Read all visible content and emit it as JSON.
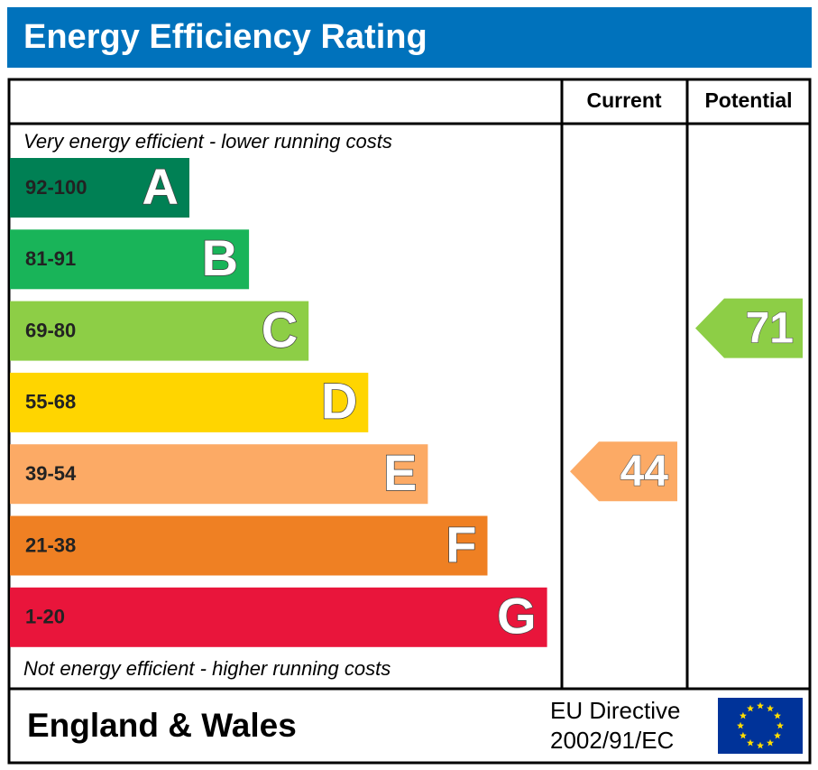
{
  "header": {
    "title": "Energy Efficiency Rating"
  },
  "columns": {
    "current": "Current",
    "potential": "Potential"
  },
  "top_note": "Very energy efficient - lower running costs",
  "bottom_note": "Not energy efficient - higher running costs",
  "bands": [
    {
      "range": "92-100",
      "letter": "A",
      "color": "#008054"
    },
    {
      "range": "81-91",
      "letter": "B",
      "color": "#19b459"
    },
    {
      "range": "69-80",
      "letter": "C",
      "color": "#8dce46"
    },
    {
      "range": "55-68",
      "letter": "D",
      "color": "#ffd500"
    },
    {
      "range": "39-54",
      "letter": "E",
      "color": "#fcaa65"
    },
    {
      "range": "21-38",
      "letter": "F",
      "color": "#ef8023"
    },
    {
      "range": "1-20",
      "letter": "G",
      "color": "#e9153b"
    }
  ],
  "ratings": {
    "current": 44,
    "potential": 71
  },
  "footer": {
    "region": "England & Wales",
    "directive": [
      "EU Directive",
      "2002/91/EC"
    ]
  }
}
